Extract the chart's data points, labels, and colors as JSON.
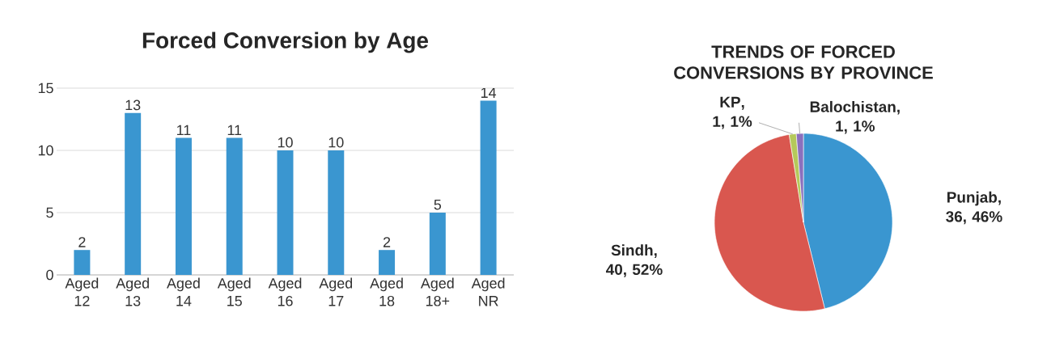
{
  "chart_data": [
    {
      "type": "bar",
      "title": "Forced Conversion by Age",
      "categories": [
        "Aged 12",
        "Aged 13",
        "Aged 14",
        "Aged 15",
        "Aged 16",
        "Aged 17",
        "Aged 18",
        "Aged 18+",
        "Aged NR"
      ],
      "values": [
        2,
        13,
        11,
        11,
        10,
        10,
        2,
        5,
        14
      ],
      "color": "#3a96d0",
      "ylim": [
        0,
        15
      ],
      "yticks": [
        0,
        5,
        10,
        15
      ],
      "grid": "y",
      "data_labels": true
    },
    {
      "type": "pie",
      "title": "TRENDS OF FORCED CONVERSIONS BY PROVINCE",
      "categories": [
        "Punjab",
        "Sindh",
        "KP",
        "Balochistan"
      ],
      "values": [
        36,
        40,
        1,
        1
      ],
      "colors": [
        "#3a96d0",
        "#d9574f",
        "#b5c95a",
        "#8b70bd"
      ],
      "value_labels": [
        ", 36, 46%",
        ", 40, 52%",
        ", 1, 1%",
        ", 1, 1%"
      ]
    }
  ]
}
